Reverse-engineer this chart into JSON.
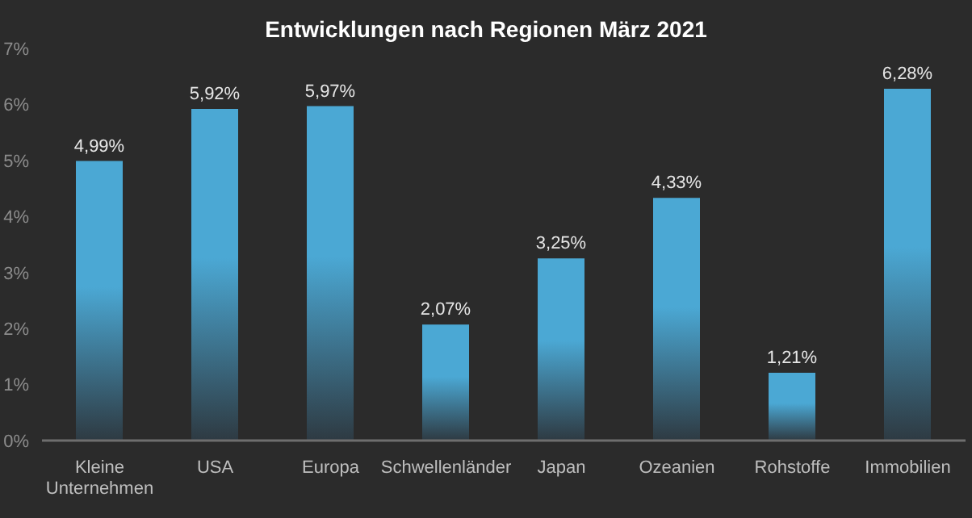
{
  "chart_data": {
    "type": "bar",
    "title": "Entwicklungen nach Regionen März 2021",
    "categories": [
      "Kleine Unternehmen",
      "USA",
      "Europa",
      "Schwellenländer",
      "Japan",
      "Ozeanien",
      "Rohstoffe",
      "Immobilien"
    ],
    "values": [
      4.99,
      5.92,
      5.97,
      2.07,
      3.25,
      4.33,
      1.21,
      6.28
    ],
    "value_labels": [
      "4,99%",
      "5,92%",
      "5,97%",
      "2,07%",
      "3,25%",
      "4,33%",
      "1,21%",
      "6,28%"
    ],
    "color": "#4ba8d4",
    "ylim": [
      0,
      7
    ],
    "yticks": [
      {
        "value": 0,
        "label": "0%"
      },
      {
        "value": 1,
        "label": "1%"
      },
      {
        "value": 2,
        "label": "2%"
      },
      {
        "value": 3,
        "label": "3%"
      },
      {
        "value": 4,
        "label": "4%"
      },
      {
        "value": 5,
        "label": "5%"
      },
      {
        "value": 6,
        "label": "6%"
      },
      {
        "value": 7,
        "label": "7%"
      }
    ],
    "grid": false,
    "legend": false
  }
}
